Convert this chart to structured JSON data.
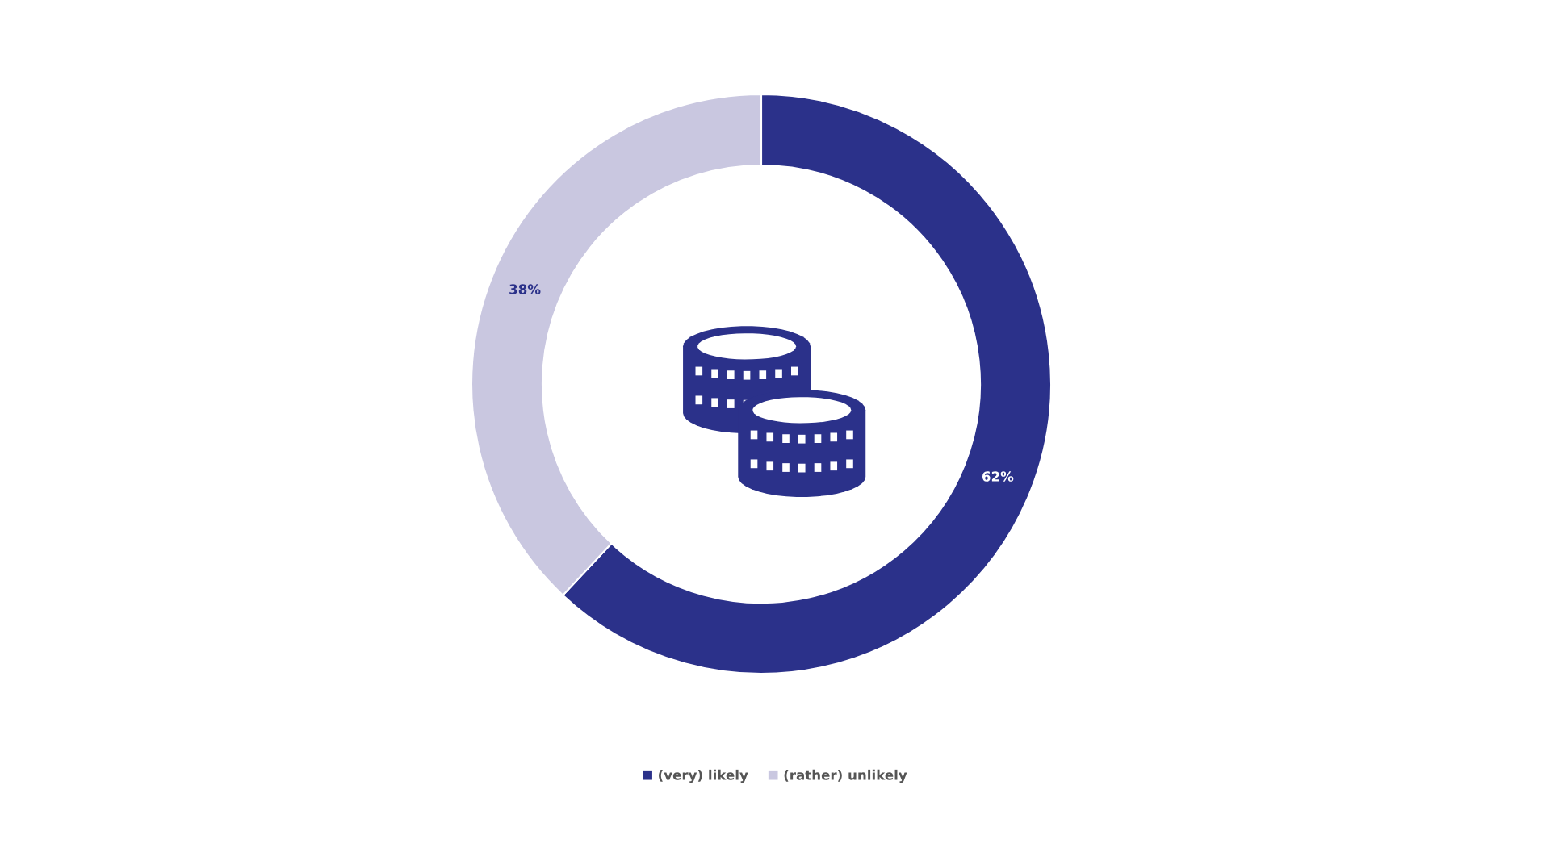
{
  "chart_data": {
    "type": "donut",
    "categories": [
      "(very) likely",
      "(rather) unlikely"
    ],
    "values": [
      62,
      38
    ],
    "colors": [
      "#2b318a",
      "#c9c7e0"
    ],
    "value_labels": [
      "62%",
      "38%"
    ],
    "legend": "bottom"
  }
}
